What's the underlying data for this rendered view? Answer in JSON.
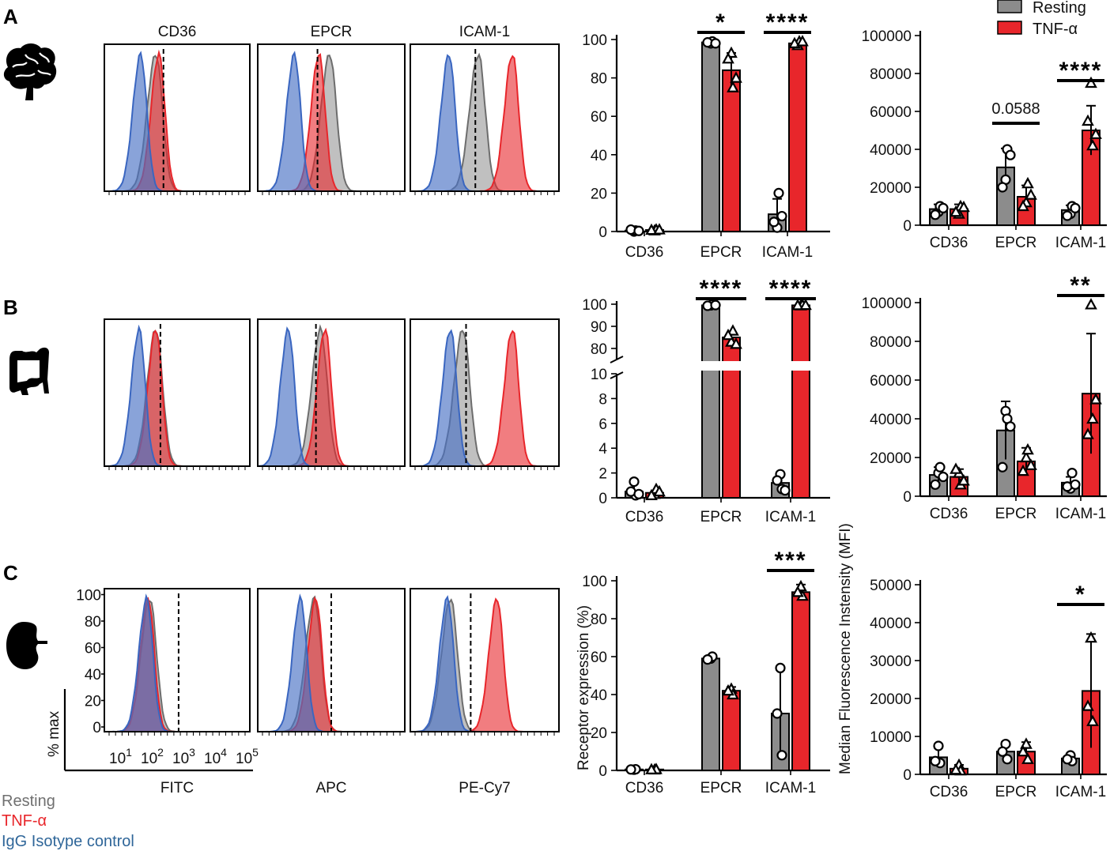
{
  "colors": {
    "resting": "#8c8c8c",
    "tnf": "#e8262b",
    "isotype": "#4a72c4",
    "isotype_text": "#2f6699",
    "resting_text": "#707070",
    "tnf_text": "#e8262b"
  },
  "panels": [
    {
      "letter": "A",
      "organ": "brain-icon"
    },
    {
      "letter": "B",
      "organ": "intestine-icon"
    },
    {
      "letter": "C",
      "organ": "kidney-icon"
    }
  ],
  "histograms": {
    "titles_row_a": [
      "CD36",
      "EPCR",
      "ICAM-1"
    ],
    "channels": [
      "FITC",
      "APC",
      "PE-Cy7"
    ],
    "y_label": "% max",
    "y_ticks": [
      "0",
      "20",
      "40",
      "60",
      "80",
      "100"
    ],
    "x_ticks": [
      "10",
      "10",
      "10",
      "10",
      "10"
    ],
    "x_exponents": [
      "1",
      "2",
      "3",
      "4",
      "5"
    ],
    "gate_positions_log": [
      [
        2.55,
        2.55,
        2.7
      ],
      [
        2.45,
        2.5,
        2.4
      ],
      [
        3.05,
        3.0,
        2.55
      ]
    ],
    "peaks_log": {
      "A": [
        [
          1.8,
          2.3,
          2.4
        ],
        [
          1.8,
          2.95,
          2.6
        ],
        [
          1.85,
          2.8,
          3.9
        ]
      ],
      "B": [
        [
          1.75,
          2.3,
          2.3
        ],
        [
          1.6,
          2.65,
          2.8
        ],
        [
          1.9,
          2.3,
          3.9
        ]
      ],
      "C": [
        [
          2.0,
          2.1,
          2.05
        ],
        [
          2.0,
          2.45,
          2.5
        ],
        [
          1.8,
          1.9,
          3.4
        ]
      ]
    }
  },
  "legend_bottom": {
    "resting": "Resting",
    "tnf": "TNF-α",
    "isotype": "IgG Isotype control"
  },
  "legend_top": {
    "resting": "Resting",
    "tnf": "TNF-α"
  },
  "chart_data": [
    {
      "type": "bar",
      "panel": "A",
      "metric": "Receptor expression (%)",
      "categories": [
        "CD36",
        "EPCR",
        "ICAM-1"
      ],
      "series": [
        {
          "name": "Resting",
          "values": [
            0.5,
            98.5,
            9
          ],
          "sd": [
            0.3,
            1,
            8
          ],
          "points": [
            [
              0,
              0.5,
              1,
              0.3
            ],
            [
              98,
              99,
              98.5,
              98
            ],
            [
              2,
              20,
              5,
              8
            ]
          ]
        },
        {
          "name": "TNF-α",
          "values": [
            0.8,
            84,
            98
          ],
          "sd": [
            0.3,
            9,
            1.5
          ],
          "points": [
            [
              0.5,
              1,
              0.8,
              1
            ],
            [
              93,
              75,
              90,
              80
            ],
            [
              97,
              99,
              98,
              99
            ]
          ]
        }
      ],
      "ylim": [
        0,
        100
      ],
      "yticks": [
        "0",
        "20",
        "40",
        "60",
        "80",
        "100"
      ],
      "significance": [
        {
          "category": "EPCR",
          "label": "*"
        },
        {
          "category": "ICAM-1",
          "label": "****"
        }
      ]
    },
    {
      "type": "bar",
      "panel": "A",
      "metric": "Median Fluorescence Instensity (MFI)",
      "categories": [
        "CD36",
        "EPCR",
        "ICAM-1"
      ],
      "series": [
        {
          "name": "Resting",
          "values": [
            8500,
            30500,
            8000
          ],
          "sd": [
            2500,
            10000,
            2500
          ],
          "points": [
            [
              7000,
              10000,
              5500,
              9000
            ],
            [
              24000,
              40000,
              20000,
              37000
            ],
            [
              6000,
              10000,
              5000,
              9000
            ]
          ]
        },
        {
          "name": "TNF-α",
          "values": [
            8500,
            15000,
            50000
          ],
          "sd": [
            2500,
            6000,
            13000
          ],
          "points": [
            [
              6000,
              10000,
              7000,
              9500
            ],
            [
              12000,
              22000,
              10000,
              16000
            ],
            [
              75000,
              42000,
              55000,
              48000
            ]
          ]
        }
      ],
      "ylim": [
        0,
        100000
      ],
      "yticks": [
        "0",
        "20000",
        "40000",
        "60000",
        "80000",
        "100000"
      ],
      "significance": [
        {
          "category": "EPCR",
          "label": "0.0588"
        },
        {
          "category": "ICAM-1",
          "label": "****"
        }
      ]
    },
    {
      "type": "bar",
      "panel": "B",
      "metric": "Receptor expression (%)",
      "broken_axis": true,
      "lower_ylim": [
        0,
        10
      ],
      "upper_ylim": [
        70,
        100
      ],
      "categories": [
        "CD36",
        "EPCR",
        "ICAM-1"
      ],
      "series": [
        {
          "name": "Resting",
          "values": [
            0.5,
            99.5,
            1.2
          ],
          "sd": [
            0.5,
            0.3,
            0.7
          ],
          "points": [
            [
              1.3,
              0.2,
              0.5,
              0.3
            ],
            [
              99.5,
              99.8,
              99.3,
              99.6
            ],
            [
              1.9,
              0.7,
              1.4,
              0.6
            ]
          ]
        },
        {
          "name": "TNF-α",
          "values": [
            0.4,
            85,
            99.5
          ],
          "sd": [
            0.2,
            3,
            0.3
          ],
          "points": [
            [
              0.3,
              0.7,
              0.2,
              0.5
            ],
            [
              83,
              88,
              86,
              82
            ],
            [
              99.4,
              99.7,
              99.5,
              99.6
            ]
          ]
        }
      ],
      "lower_yticks": [
        "0",
        "2",
        "4",
        "6",
        "8",
        "10"
      ],
      "upper_yticks": [
        "80",
        "90",
        "100"
      ],
      "significance": [
        {
          "category": "EPCR",
          "label": "****"
        },
        {
          "category": "ICAM-1",
          "label": "****"
        }
      ]
    },
    {
      "type": "bar",
      "panel": "B",
      "metric": "Median Fluorescence Instensity (MFI)",
      "categories": [
        "CD36",
        "EPCR",
        "ICAM-1"
      ],
      "series": [
        {
          "name": "Resting",
          "values": [
            11000,
            34000,
            7000
          ],
          "sd": [
            4000,
            15000,
            3000
          ],
          "points": [
            [
              12000,
              15000,
              6000,
              10000
            ],
            [
              44000,
              40000,
              15000,
              36000
            ],
            [
              4000,
              12000,
              5000,
              6000
            ]
          ]
        },
        {
          "name": "TNF-α",
          "values": [
            10000,
            18000,
            53000
          ],
          "sd": [
            4000,
            7000,
            31000
          ],
          "points": [
            [
              12000,
              6000,
              14000,
              8000
            ],
            [
              20000,
              24000,
              13000,
              16000
            ],
            [
              99000,
              40000,
              32000,
              50000
            ]
          ]
        }
      ],
      "ylim": [
        0,
        100000
      ],
      "yticks": [
        "0",
        "20000",
        "40000",
        "60000",
        "80000",
        "100000"
      ],
      "significance": [
        {
          "category": "ICAM-1",
          "label": "**"
        }
      ]
    },
    {
      "type": "bar",
      "panel": "C",
      "metric": "Receptor expression (%)",
      "categories": [
        "CD36",
        "EPCR",
        "ICAM-1"
      ],
      "series": [
        {
          "name": "Resting",
          "values": [
            0.5,
            59,
            30
          ],
          "sd": [
            0.2,
            1,
            23
          ],
          "points": [
            [
              0.4,
              0.6,
              0.5
            ],
            [
              59,
              60,
              58.5
            ],
            [
              54,
              8,
              30
            ]
          ]
        },
        {
          "name": "TNF-α",
          "values": [
            0.5,
            42,
            94
          ],
          "sd": [
            0.2,
            2,
            4
          ],
          "points": [
            [
              0.4,
              0.6,
              0.5
            ],
            [
              43,
              40,
              42
            ],
            [
              97,
              92,
              94
            ]
          ]
        }
      ],
      "ylim": [
        0,
        100
      ],
      "yticks": [
        "0",
        "20",
        "40",
        "60",
        "80",
        "100"
      ],
      "significance": [
        {
          "category": "ICAM-1",
          "label": "***"
        }
      ]
    },
    {
      "type": "bar",
      "panel": "C",
      "metric": "Median Fluorescence Instensity (MFI)",
      "categories": [
        "CD36",
        "EPCR",
        "ICAM-1"
      ],
      "series": [
        {
          "name": "Resting",
          "values": [
            4500,
            6000,
            4200
          ],
          "sd": [
            2500,
            2500,
            1000
          ],
          "points": [
            [
              7500,
              3000,
              3500
            ],
            [
              8000,
              4000,
              6000
            ],
            [
              5000,
              3500,
              4000
            ]
          ]
        },
        {
          "name": "TNF-α",
          "values": [
            1500,
            6000,
            22000
          ],
          "sd": [
            1000,
            2500,
            15000
          ],
          "points": [
            [
              2500,
              1000,
              1200
            ],
            [
              8000,
              4000,
              6000
            ],
            [
              36000,
              14000,
              18000
            ]
          ]
        }
      ],
      "ylim": [
        0,
        50000
      ],
      "yticks": [
        "0",
        "10000",
        "20000",
        "30000",
        "40000",
        "50000"
      ],
      "significance": [
        {
          "category": "ICAM-1",
          "label": "*"
        }
      ]
    }
  ],
  "axis_labels": {
    "receptor": "Receptor expression (%)",
    "mfi": "Median Fluorescence Instensity (MFI)"
  }
}
